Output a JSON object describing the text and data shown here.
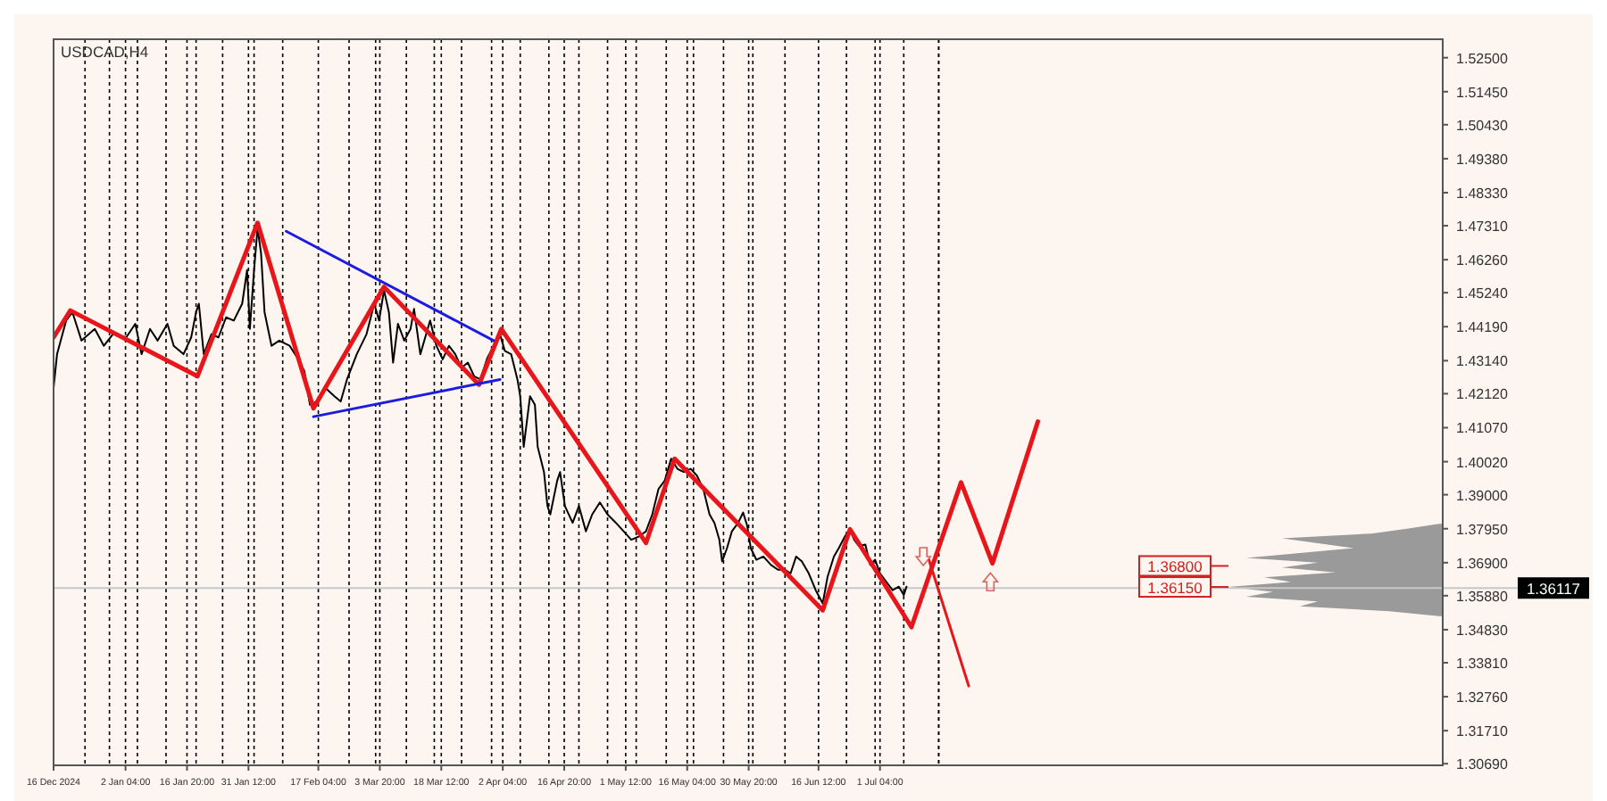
{
  "chart_data": {
    "type": "line",
    "title": "USDCAD,H4",
    "xlim": [
      "2024-12-16T00:00",
      "2025-11-12T10:00"
    ],
    "ylim": [
      1.3064,
      1.5307
    ],
    "xticks": [
      {
        "value": "2024-12-16T00:00",
        "label": "16 Dec 2024"
      },
      {
        "value": "2024-12-23T12:00",
        "label": null
      },
      {
        "value": "2024-12-29T08:00",
        "label": null
      },
      {
        "value": "2025-01-02T04:00",
        "label": "2 Jan 04:00"
      },
      {
        "value": "2025-01-05T00:00",
        "label": null
      },
      {
        "value": "2025-01-11T20:00",
        "label": null
      },
      {
        "value": "2025-01-16T20:00",
        "label": "16 Jan 20:00"
      },
      {
        "value": "2025-01-19T00:00",
        "label": null
      },
      {
        "value": "2025-01-25T08:00",
        "label": null
      },
      {
        "value": "2025-01-31T12:00",
        "label": "31 Jan 12:00"
      },
      {
        "value": "2025-02-01T20:00",
        "label": null
      },
      {
        "value": "2025-02-08T16:00",
        "label": null
      },
      {
        "value": "2025-02-17T04:00",
        "label": "17 Feb 04:00"
      },
      {
        "value": "2025-02-24T12:00",
        "label": null
      },
      {
        "value": "2025-03-02T20:00",
        "label": null
      },
      {
        "value": "2025-03-03T20:00",
        "label": "3 Mar 20:00"
      },
      {
        "value": "2025-03-10T04:00",
        "label": null
      },
      {
        "value": "2025-03-16T20:00",
        "label": null
      },
      {
        "value": "2025-03-18T12:00",
        "label": "18 Mar 12:00"
      },
      {
        "value": "2025-03-23T08:00",
        "label": null
      },
      {
        "value": "2025-03-30T12:00",
        "label": null
      },
      {
        "value": "2025-04-02T04:00",
        "label": "2 Apr 04:00"
      },
      {
        "value": "2025-04-06T08:00",
        "label": null
      },
      {
        "value": "2025-04-13T04:00",
        "label": null
      },
      {
        "value": "2025-04-16T20:00",
        "label": "16 Apr 20:00"
      },
      {
        "value": "2025-04-20T08:00",
        "label": null
      },
      {
        "value": "2025-04-27T04:00",
        "label": null
      },
      {
        "value": "2025-05-01T12:00",
        "label": "1 May 12:00"
      },
      {
        "value": "2025-05-04T00:00",
        "label": null
      },
      {
        "value": "2025-05-11T04:00",
        "label": null
      },
      {
        "value": "2025-05-16T04:00",
        "label": "16 May 04:00"
      },
      {
        "value": "2025-05-17T16:00",
        "label": null
      },
      {
        "value": "2025-05-24T20:00",
        "label": null
      },
      {
        "value": "2025-05-30T20:00",
        "label": "30 May 20:00"
      },
      {
        "value": "2025-05-31T20:00",
        "label": null
      },
      {
        "value": "2025-06-08T12:00",
        "label": null
      },
      {
        "value": "2025-06-16T12:00",
        "label": "16 Jun 12:00"
      },
      {
        "value": "2025-06-23T04:00",
        "label": null
      },
      {
        "value": "2025-06-30T00:00",
        "label": null
      },
      {
        "value": "2025-07-01T04:00",
        "label": "1 Jul 04:00"
      },
      {
        "value": "2025-07-06T20:00",
        "label": null
      }
    ],
    "yticks": [
      {
        "value": 1.525,
        "label": "1.52500"
      },
      {
        "value": 1.5145,
        "label": "1.51450"
      },
      {
        "value": 1.5043,
        "label": "1.50430"
      },
      {
        "value": 1.4938,
        "label": "1.49380"
      },
      {
        "value": 1.4833,
        "label": "1.48330"
      },
      {
        "value": 1.4731,
        "label": "1.47310"
      },
      {
        "value": 1.4626,
        "label": "1.46260"
      },
      {
        "value": 1.4524,
        "label": "1.45240"
      },
      {
        "value": 1.4419,
        "label": "1.44190"
      },
      {
        "value": 1.4314,
        "label": "1.43140"
      },
      {
        "value": 1.4212,
        "label": "1.42120"
      },
      {
        "value": 1.4107,
        "label": "1.41070"
      },
      {
        "value": 1.4002,
        "label": "1.40020"
      },
      {
        "value": 1.39,
        "label": "1.39000"
      },
      {
        "value": 1.3795,
        "label": "1.37950"
      },
      {
        "value": 1.369,
        "label": "1.36900"
      },
      {
        "value": 1.3588,
        "label": "1.35880"
      },
      {
        "value": 1.3483,
        "label": "1.34830"
      },
      {
        "value": 1.3381,
        "label": "1.33810"
      },
      {
        "value": 1.3276,
        "label": "1.32760"
      },
      {
        "value": 1.3171,
        "label": "1.31710"
      },
      {
        "value": 1.3069,
        "label": "1.30690"
      }
    ],
    "grid": "x",
    "series": [
      {
        "color": "#000000",
        "x": [
          "2024-12-16T00:00",
          "2024-12-16T20:00",
          "2024-12-19T00:00",
          "2024-12-20T12:00",
          "2024-12-22T16:00",
          "2024-12-25T20:00",
          "2024-12-28T00:00",
          "2024-12-30T04:00",
          "2025-01-02T08:00",
          "2025-01-04T12:00",
          "2025-01-06T00:00",
          "2025-01-08T00:00",
          "2025-01-09T20:00",
          "2025-01-12T04:00",
          "2025-01-13T16:00",
          "2025-01-16T00:00",
          "2025-01-17T20:00",
          "2025-01-19T00:00",
          "2025-01-19T16:00",
          "2025-01-20T20:00",
          "2025-01-22T16:00",
          "2025-01-24T08:00",
          "2025-01-26T04:00",
          "2025-01-28T00:00",
          "2025-01-30T00:00",
          "2025-01-31T04:00",
          "2025-01-31T20:00",
          "2025-02-01T20:00",
          "2025-02-02T16:00",
          "2025-02-03T12:00",
          "2025-02-04T08:00",
          "2025-02-06T00:00",
          "2025-02-07T20:00",
          "2025-02-10T08:00",
          "2025-02-12T04:00",
          "2025-02-13T20:00",
          "2025-02-15T04:00",
          "2025-02-16T20:00",
          "2025-02-18T20:00",
          "2025-02-21T00:00",
          "2025-02-22T12:00",
          "2025-02-24T00:00",
          "2025-02-26T08:00",
          "2025-02-28T16:00",
          "2025-03-02T12:00",
          "2025-03-03T16:00",
          "2025-03-04T20:00",
          "2025-03-06T00:00",
          "2025-03-07T00:00",
          "2025-03-08T04:00",
          "2025-03-09T16:00",
          "2025-03-11T04:00",
          "2025-03-12T00:00",
          "2025-03-13T12:00",
          "2025-03-14T16:00",
          "2025-03-15T20:00",
          "2025-03-17T08:00",
          "2025-03-18T20:00",
          "2025-03-20T08:00",
          "2025-03-21T20:00",
          "2025-03-23T08:00",
          "2025-03-24T20:00",
          "2025-03-26T08:00",
          "2025-03-27T20:00",
          "2025-03-29T12:00",
          "2025-03-31T00:00",
          "2025-04-01T12:00",
          "2025-04-02T16:00",
          "2025-04-04T04:00",
          "2025-04-05T16:00",
          "2025-04-06T08:00",
          "2025-04-07T04:00",
          "2025-04-08T16:00",
          "2025-04-09T20:00",
          "2025-04-10T12:00",
          "2025-04-12T00:00",
          "2025-04-12T20:00",
          "2025-04-13T12:00",
          "2025-04-15T04:00",
          "2025-04-15T20:00",
          "2025-04-17T00:00",
          "2025-04-18T20:00",
          "2025-04-20T08:00",
          "2025-04-22T00:00",
          "2025-04-23T12:00",
          "2025-04-25T08:00",
          "2025-04-27T04:00",
          "2025-04-29T04:00",
          "2025-05-01T00:00",
          "2025-05-02T20:00",
          "2025-05-04T20:00",
          "2025-05-06T08:00",
          "2025-05-07T20:00",
          "2025-05-09T08:00",
          "2025-05-10T20:00",
          "2025-05-12T08:00",
          "2025-05-13T20:00",
          "2025-05-15T08:00",
          "2025-05-17T00:00",
          "2025-05-18T12:00",
          "2025-05-20T00:00",
          "2025-05-21T12:00",
          "2025-05-22T16:00",
          "2025-05-23T20:00",
          "2025-05-24T12:00",
          "2025-05-25T16:00",
          "2025-05-26T20:00",
          "2025-05-28T08:00",
          "2025-05-29T12:00",
          "2025-05-30T12:00",
          "2025-05-31T08:00",
          "2025-06-01T16:00",
          "2025-06-03T08:00",
          "2025-06-05T04:00",
          "2025-06-06T20:00",
          "2025-06-08T12:00",
          "2025-06-09T20:00",
          "2025-06-11T04:00",
          "2025-06-12T12:00",
          "2025-06-14T04:00",
          "2025-06-15T20:00",
          "2025-06-17T12:00",
          "2025-06-18T16:00",
          "2025-06-20T04:00",
          "2025-06-21T08:00",
          "2025-06-22T20:00",
          "2025-06-24T00:00",
          "2025-06-25T00:00",
          "2025-06-26T04:00",
          "2025-06-27T16:00",
          "2025-06-28T20:00",
          "2025-06-30T00:00",
          "2025-07-01T04:00",
          "2025-07-02T16:00",
          "2025-07-04T04:00",
          "2025-07-05T16:00",
          "2025-07-06T20:00",
          "2025-07-07T12:00"
        ],
        "values": [
          1.423,
          1.4334,
          1.4438,
          1.4464,
          1.4376,
          1.4412,
          1.436,
          1.4396,
          1.4386,
          1.4428,
          1.4334,
          1.4412,
          1.4376,
          1.4428,
          1.436,
          1.4334,
          1.4386,
          1.4464,
          1.449,
          1.4334,
          1.4396,
          1.4386,
          1.4448,
          1.4438,
          1.449,
          1.4594,
          1.4412,
          1.4594,
          1.4724,
          1.4646,
          1.4464,
          1.436,
          1.4376,
          1.436,
          1.4323,
          1.4282,
          1.4178,
          1.4188,
          1.423,
          1.4204,
          1.4188,
          1.4256,
          1.4334,
          1.4396,
          1.449,
          1.4438,
          1.4532,
          1.4464,
          1.4308,
          1.4428,
          1.4376,
          1.4412,
          1.4474,
          1.4334,
          1.4386,
          1.4438,
          1.436,
          1.4318,
          1.436,
          1.4334,
          1.4292,
          1.4308,
          1.4266,
          1.4256,
          1.4323,
          1.436,
          1.4396,
          1.4344,
          1.4334,
          1.4256,
          1.4204,
          1.4048,
          1.4204,
          1.4178,
          1.4048,
          1.397,
          1.3865,
          1.3839,
          1.3944,
          1.397,
          1.3865,
          1.3813,
          1.3865,
          1.3787,
          1.3839,
          1.3876,
          1.3839,
          1.3813,
          1.3787,
          1.3761,
          1.3772,
          1.3787,
          1.3839,
          1.3918,
          1.3944,
          1.4011,
          1.398,
          1.397,
          1.398,
          1.3959,
          1.3918,
          1.3839,
          1.3813,
          1.3761,
          1.3694,
          1.3735,
          1.3787,
          1.3813,
          1.3845,
          1.3803,
          1.3735,
          1.3699,
          1.3709,
          1.3683,
          1.3668,
          1.3668,
          1.3657,
          1.3709,
          1.3694,
          1.3657,
          1.3605,
          1.3564,
          1.3647,
          1.3709,
          1.3735,
          1.3772,
          1.3793,
          1.3761,
          1.3741,
          1.3746,
          1.3683,
          1.3699,
          1.3657,
          1.3631,
          1.3605,
          1.3616,
          1.359,
          1.3616
        ]
      },
      {
        "color": "#e8161b",
        "x": [
          "2024-12-16T00:00",
          "2024-12-20T00:00",
          "2025-01-19T08:00",
          "2025-02-02T16:00",
          "2025-02-16T00:00",
          "2025-03-04T20:00",
          "2025-03-27T12:00",
          "2025-04-01T20:00",
          "2025-05-06T08:00",
          "2025-05-13T04:00",
          "2025-06-17T12:00",
          "2025-06-24T00:00",
          "2025-07-08T16:00",
          "2025-07-20T12:00",
          "2025-07-28T00:00",
          "2025-08-07T20:00"
        ],
        "values": [
          1.4386,
          1.4469,
          1.4266,
          1.474,
          1.4167,
          1.4542,
          1.424,
          1.4412,
          1.3751,
          1.4011,
          1.3543,
          1.3793,
          1.3491,
          1.3938,
          1.3688,
          1.4126
        ]
      },
      {
        "color": "#e8161b",
        "x": [
          "2025-07-12T20:00",
          "2025-07-22T08:00"
        ],
        "values": [
          1.3699,
          1.3309
        ]
      },
      {
        "color": "#1c1ce0",
        "x": [
          "2025-02-09T12:00",
          "2025-03-31T00:00"
        ],
        "values": [
          1.4714,
          1.4376
        ]
      },
      {
        "color": "#1c1ce0",
        "x": [
          "2025-02-16T00:00",
          "2025-04-01T12:00"
        ],
        "values": [
          1.4141,
          1.4256
        ]
      }
    ],
    "ref_lines": [
      {
        "axis": "y",
        "value": 1.36117,
        "label": "1.36117",
        "color": "#c8c8c8"
      },
      {
        "axis": "x",
        "value": "2025-07-15T04:00",
        "label": null,
        "color": "#000000",
        "line_style": "dotted"
      },
      {
        "axis": "y",
        "value": 1.368,
        "label": "1.36800",
        "color": "#d02020"
      },
      {
        "axis": "y",
        "value": 1.3615,
        "label": "1.36150",
        "color": "#d02020"
      }
    ]
  }
}
